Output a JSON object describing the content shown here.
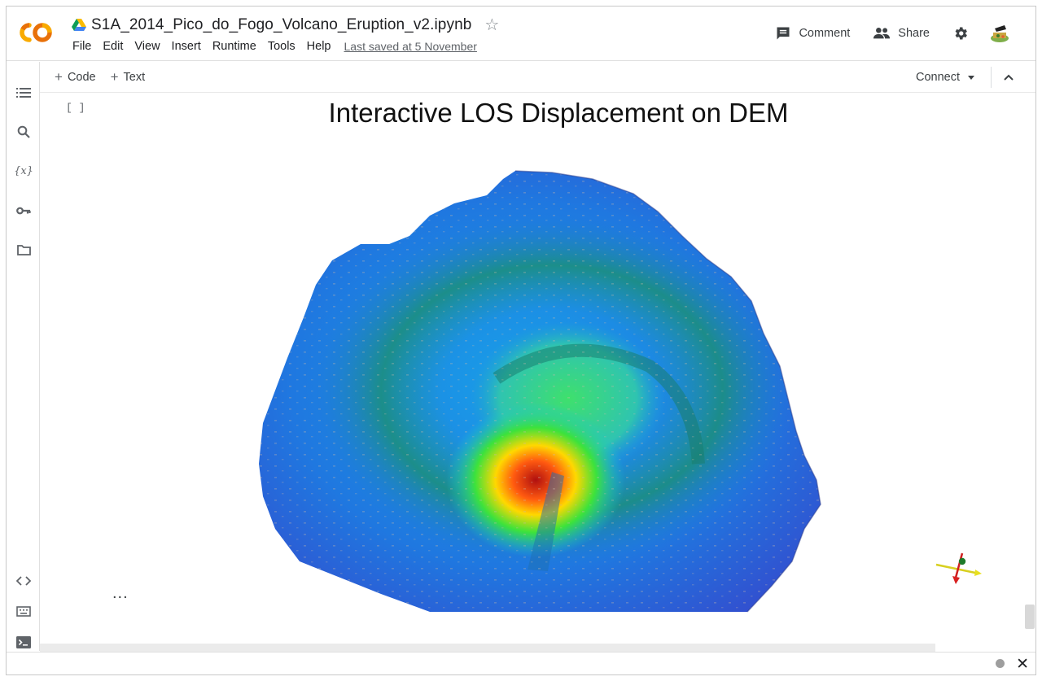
{
  "header": {
    "notebook_title": "S1A_2014_Pico_do_Fogo_Volcano_Eruption_v2.ipynb",
    "logo_text": "CO",
    "menu": [
      "File",
      "Edit",
      "View",
      "Insert",
      "Runtime",
      "Tools",
      "Help"
    ],
    "last_saved": "Last saved at 5 November",
    "comment_label": "Comment",
    "share_label": "Share"
  },
  "toolbar": {
    "code_label": "Code",
    "text_label": "Text",
    "connect_label": "Connect"
  },
  "cell": {
    "bracket": "[ ]",
    "output_title": "Interactive LOS Displacement on DEM",
    "ellipsis": "..."
  },
  "colors": {
    "logo_orange": "#F9AB00",
    "logo_dark_orange": "#E8710A",
    "text_primary": "#202124",
    "icon_gray": "#5f6368"
  },
  "icons": {
    "rail": [
      "table-of-contents-icon",
      "search-icon",
      "variables-icon",
      "key-icon",
      "folder-icon",
      "code-snippets-icon",
      "command-palette-icon",
      "terminal-icon"
    ]
  }
}
